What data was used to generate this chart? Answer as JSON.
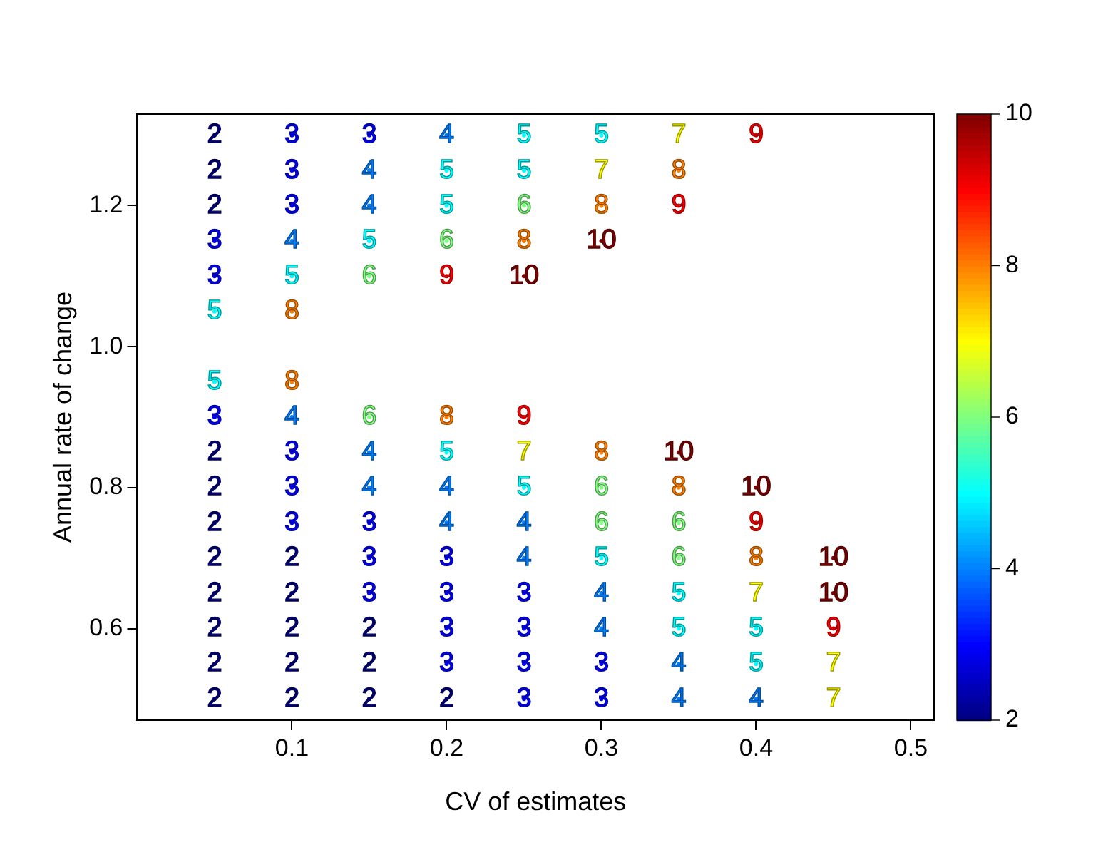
{
  "chart_data": {
    "type": "scatter",
    "xlabel": "CV of estimates",
    "ylabel": "Annual rate of change",
    "xlim": [
      0,
      0.515
    ],
    "xticks": [
      0.1,
      0.2,
      0.3,
      0.4,
      0.5
    ],
    "ylim": [
      0.47,
      1.33
    ],
    "yticks": [
      0.6,
      0.8,
      {
        "value": 1.0,
        "label": "1.0"
      },
      1.2
    ],
    "annotations": [
      {
        "text": "2",
        "x": 0.05,
        "y": 1.3
      },
      {
        "text": "3",
        "x": 0.1,
        "y": 1.3
      },
      {
        "text": "3",
        "x": 0.15,
        "y": 1.3
      },
      {
        "text": "4",
        "x": 0.2,
        "y": 1.3
      },
      {
        "text": "5",
        "x": 0.25,
        "y": 1.3
      },
      {
        "text": "5",
        "x": 0.3,
        "y": 1.3
      },
      {
        "text": "7",
        "x": 0.35,
        "y": 1.3
      },
      {
        "text": "9",
        "x": 0.4,
        "y": 1.3
      },
      {
        "text": "2",
        "x": 0.05,
        "y": 1.25
      },
      {
        "text": "3",
        "x": 0.1,
        "y": 1.25
      },
      {
        "text": "4",
        "x": 0.15,
        "y": 1.25
      },
      {
        "text": "5",
        "x": 0.2,
        "y": 1.25
      },
      {
        "text": "5",
        "x": 0.25,
        "y": 1.25
      },
      {
        "text": "7",
        "x": 0.3,
        "y": 1.25
      },
      {
        "text": "8",
        "x": 0.35,
        "y": 1.25
      },
      {
        "text": "2",
        "x": 0.05,
        "y": 1.2
      },
      {
        "text": "3",
        "x": 0.1,
        "y": 1.2
      },
      {
        "text": "4",
        "x": 0.15,
        "y": 1.2
      },
      {
        "text": "5",
        "x": 0.2,
        "y": 1.2
      },
      {
        "text": "6",
        "x": 0.25,
        "y": 1.2
      },
      {
        "text": "8",
        "x": 0.3,
        "y": 1.2
      },
      {
        "text": "9",
        "x": 0.35,
        "y": 1.2
      },
      {
        "text": "3",
        "x": 0.05,
        "y": 1.15
      },
      {
        "text": "4",
        "x": 0.1,
        "y": 1.15
      },
      {
        "text": "5",
        "x": 0.15,
        "y": 1.15
      },
      {
        "text": "6",
        "x": 0.2,
        "y": 1.15
      },
      {
        "text": "8",
        "x": 0.25,
        "y": 1.15
      },
      {
        "text": "10",
        "x": 0.3,
        "y": 1.15
      },
      {
        "text": "3",
        "x": 0.05,
        "y": 1.1
      },
      {
        "text": "5",
        "x": 0.1,
        "y": 1.1
      },
      {
        "text": "6",
        "x": 0.15,
        "y": 1.1
      },
      {
        "text": "9",
        "x": 0.2,
        "y": 1.1
      },
      {
        "text": "10",
        "x": 0.25,
        "y": 1.1
      },
      {
        "text": "5",
        "x": 0.05,
        "y": 1.05
      },
      {
        "text": "8",
        "x": 0.1,
        "y": 1.05
      },
      {
        "text": "5",
        "x": 0.05,
        "y": 0.95
      },
      {
        "text": "8",
        "x": 0.1,
        "y": 0.95
      },
      {
        "text": "3",
        "x": 0.05,
        "y": 0.9
      },
      {
        "text": "4",
        "x": 0.1,
        "y": 0.9
      },
      {
        "text": "6",
        "x": 0.15,
        "y": 0.9
      },
      {
        "text": "8",
        "x": 0.2,
        "y": 0.9
      },
      {
        "text": "9",
        "x": 0.25,
        "y": 0.9
      },
      {
        "text": "2",
        "x": 0.05,
        "y": 0.85
      },
      {
        "text": "3",
        "x": 0.1,
        "y": 0.85
      },
      {
        "text": "4",
        "x": 0.15,
        "y": 0.85
      },
      {
        "text": "5",
        "x": 0.2,
        "y": 0.85
      },
      {
        "text": "7",
        "x": 0.25,
        "y": 0.85
      },
      {
        "text": "8",
        "x": 0.3,
        "y": 0.85
      },
      {
        "text": "10",
        "x": 0.35,
        "y": 0.85
      },
      {
        "text": "2",
        "x": 0.05,
        "y": 0.8
      },
      {
        "text": "3",
        "x": 0.1,
        "y": 0.8
      },
      {
        "text": "4",
        "x": 0.15,
        "y": 0.8
      },
      {
        "text": "4",
        "x": 0.2,
        "y": 0.8
      },
      {
        "text": "5",
        "x": 0.25,
        "y": 0.8
      },
      {
        "text": "6",
        "x": 0.3,
        "y": 0.8
      },
      {
        "text": "8",
        "x": 0.35,
        "y": 0.8
      },
      {
        "text": "10",
        "x": 0.4,
        "y": 0.8
      },
      {
        "text": "2",
        "x": 0.05,
        "y": 0.75
      },
      {
        "text": "3",
        "x": 0.1,
        "y": 0.75
      },
      {
        "text": "3",
        "x": 0.15,
        "y": 0.75
      },
      {
        "text": "4",
        "x": 0.2,
        "y": 0.75
      },
      {
        "text": "4",
        "x": 0.25,
        "y": 0.75
      },
      {
        "text": "6",
        "x": 0.3,
        "y": 0.75
      },
      {
        "text": "6",
        "x": 0.35,
        "y": 0.75
      },
      {
        "text": "9",
        "x": 0.4,
        "y": 0.75
      },
      {
        "text": "2",
        "x": 0.05,
        "y": 0.7
      },
      {
        "text": "2",
        "x": 0.1,
        "y": 0.7
      },
      {
        "text": "3",
        "x": 0.15,
        "y": 0.7
      },
      {
        "text": "3",
        "x": 0.2,
        "y": 0.7
      },
      {
        "text": "4",
        "x": 0.25,
        "y": 0.7
      },
      {
        "text": "5",
        "x": 0.3,
        "y": 0.7
      },
      {
        "text": "6",
        "x": 0.35,
        "y": 0.7
      },
      {
        "text": "8",
        "x": 0.4,
        "y": 0.7
      },
      {
        "text": "10",
        "x": 0.45,
        "y": 0.7
      },
      {
        "text": "2",
        "x": 0.05,
        "y": 0.65
      },
      {
        "text": "2",
        "x": 0.1,
        "y": 0.65
      },
      {
        "text": "3",
        "x": 0.15,
        "y": 0.65
      },
      {
        "text": "3",
        "x": 0.2,
        "y": 0.65
      },
      {
        "text": "3",
        "x": 0.25,
        "y": 0.65
      },
      {
        "text": "4",
        "x": 0.3,
        "y": 0.65
      },
      {
        "text": "5",
        "x": 0.35,
        "y": 0.65
      },
      {
        "text": "7",
        "x": 0.4,
        "y": 0.65
      },
      {
        "text": "10",
        "x": 0.45,
        "y": 0.65
      },
      {
        "text": "2",
        "x": 0.05,
        "y": 0.6
      },
      {
        "text": "2",
        "x": 0.1,
        "y": 0.6
      },
      {
        "text": "2",
        "x": 0.15,
        "y": 0.6
      },
      {
        "text": "3",
        "x": 0.2,
        "y": 0.6
      },
      {
        "text": "3",
        "x": 0.25,
        "y": 0.6
      },
      {
        "text": "4",
        "x": 0.3,
        "y": 0.6
      },
      {
        "text": "5",
        "x": 0.35,
        "y": 0.6
      },
      {
        "text": "5",
        "x": 0.4,
        "y": 0.6
      },
      {
        "text": "9",
        "x": 0.45,
        "y": 0.6
      },
      {
        "text": "2",
        "x": 0.05,
        "y": 0.55
      },
      {
        "text": "2",
        "x": 0.1,
        "y": 0.55
      },
      {
        "text": "2",
        "x": 0.15,
        "y": 0.55
      },
      {
        "text": "3",
        "x": 0.2,
        "y": 0.55
      },
      {
        "text": "3",
        "x": 0.25,
        "y": 0.55
      },
      {
        "text": "3",
        "x": 0.3,
        "y": 0.55
      },
      {
        "text": "4",
        "x": 0.35,
        "y": 0.55
      },
      {
        "text": "5",
        "x": 0.4,
        "y": 0.55
      },
      {
        "text": "7",
        "x": 0.45,
        "y": 0.55
      },
      {
        "text": "2",
        "x": 0.05,
        "y": 0.5
      },
      {
        "text": "2",
        "x": 0.1,
        "y": 0.5
      },
      {
        "text": "2",
        "x": 0.15,
        "y": 0.5
      },
      {
        "text": "2",
        "x": 0.2,
        "y": 0.5
      },
      {
        "text": "3",
        "x": 0.25,
        "y": 0.5
      },
      {
        "text": "3",
        "x": 0.3,
        "y": 0.5
      },
      {
        "text": "4",
        "x": 0.35,
        "y": 0.5
      },
      {
        "text": "4",
        "x": 0.4,
        "y": 0.5
      },
      {
        "text": "7",
        "x": 0.45,
        "y": 0.5
      }
    ],
    "clim": [
      2,
      10
    ],
    "cticks": [
      2,
      4,
      6,
      8,
      10
    ],
    "grid": false,
    "legend": false,
    "series": [
      {
        "x": [
          0.05,
          0.1,
          0.15,
          0.2,
          0.25,
          0.3,
          0.35,
          0.4,
          0.05,
          0.1,
          0.15,
          0.2,
          0.25,
          0.3,
          0.35,
          0.05,
          0.1,
          0.15,
          0.2,
          0.25,
          0.3,
          0.35,
          0.05,
          0.1,
          0.15,
          0.2,
          0.25,
          0.3,
          0.05,
          0.1,
          0.15,
          0.2,
          0.25,
          0.05,
          0.1,
          0.05,
          0.1,
          0.05,
          0.1,
          0.15,
          0.2,
          0.25,
          0.05,
          0.1,
          0.15,
          0.2,
          0.25,
          0.3,
          0.35,
          0.05,
          0.1,
          0.15,
          0.2,
          0.25,
          0.3,
          0.35,
          0.4,
          0.05,
          0.1,
          0.15,
          0.2,
          0.25,
          0.3,
          0.35,
          0.4,
          0.05,
          0.1,
          0.15,
          0.2,
          0.25,
          0.3,
          0.35,
          0.4,
          0.45,
          0.05,
          0.1,
          0.15,
          0.2,
          0.25,
          0.3,
          0.35,
          0.4,
          0.45,
          0.05,
          0.1,
          0.15,
          0.2,
          0.25,
          0.3,
          0.35,
          0.4,
          0.45,
          0.05,
          0.1,
          0.15,
          0.2,
          0.25,
          0.3,
          0.35,
          0.4,
          0.45,
          0.05,
          0.1,
          0.15,
          0.2,
          0.25,
          0.3,
          0.35,
          0.4,
          0.45
        ],
        "values": [
          1.3,
          1.3,
          1.3,
          1.3,
          1.3,
          1.3,
          1.3,
          1.3,
          1.25,
          1.25,
          1.25,
          1.25,
          1.25,
          1.25,
          1.25,
          1.2,
          1.2,
          1.2,
          1.2,
          1.2,
          1.2,
          1.2,
          1.15,
          1.15,
          1.15,
          1.15,
          1.15,
          1.15,
          1.1,
          1.1,
          1.1,
          1.1,
          1.1,
          1.05,
          1.05,
          0.95,
          0.95,
          0.9,
          0.9,
          0.9,
          0.9,
          0.9,
          0.85,
          0.85,
          0.85,
          0.85,
          0.85,
          0.85,
          0.85,
          0.8,
          0.8,
          0.8,
          0.8,
          0.8,
          0.8,
          0.8,
          0.8,
          0.75,
          0.75,
          0.75,
          0.75,
          0.75,
          0.75,
          0.75,
          0.75,
          0.7,
          0.7,
          0.7,
          0.7,
          0.7,
          0.7,
          0.7,
          0.7,
          0.7,
          0.65,
          0.65,
          0.65,
          0.65,
          0.65,
          0.65,
          0.65,
          0.65,
          0.65,
          0.6,
          0.6,
          0.6,
          0.6,
          0.6,
          0.6,
          0.6,
          0.6,
          0.6,
          0.55,
          0.55,
          0.55,
          0.55,
          0.55,
          0.55,
          0.55,
          0.55,
          0.55,
          0.5,
          0.5,
          0.5,
          0.5,
          0.5,
          0.5,
          0.5,
          0.5,
          0.5
        ],
        "cvalues": [
          2,
          3,
          3,
          4,
          5,
          5,
          7,
          9,
          2,
          3,
          4,
          5,
          5,
          7,
          8,
          2,
          3,
          4,
          5,
          6,
          8,
          9,
          3,
          4,
          5,
          6,
          8,
          10,
          3,
          5,
          6,
          9,
          10,
          5,
          8,
          5,
          8,
          3,
          4,
          6,
          8,
          9,
          2,
          3,
          4,
          5,
          7,
          8,
          10,
          2,
          3,
          4,
          4,
          5,
          6,
          8,
          10,
          2,
          3,
          3,
          4,
          4,
          6,
          6,
          9,
          2,
          2,
          3,
          3,
          4,
          5,
          6,
          8,
          10,
          2,
          2,
          3,
          3,
          3,
          4,
          5,
          7,
          10,
          2,
          2,
          2,
          3,
          3,
          4,
          5,
          5,
          9,
          2,
          2,
          2,
          3,
          3,
          3,
          4,
          5,
          7,
          2,
          2,
          2,
          2,
          3,
          3,
          4,
          4,
          7
        ]
      }
    ]
  }
}
